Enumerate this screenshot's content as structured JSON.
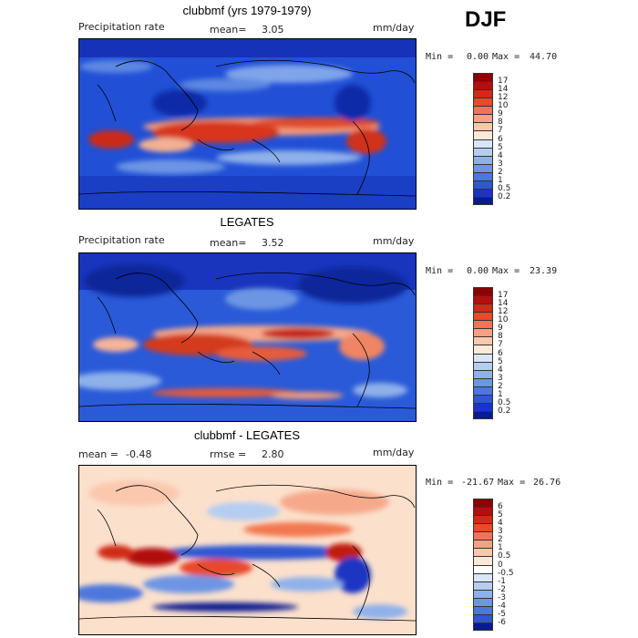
{
  "season": "DJF",
  "panels": [
    {
      "title": "clubbmf (yrs 1979-1979)",
      "left_label": "Precipitation rate",
      "stat1_label": "mean=",
      "stat1_value": "3.05",
      "stat2_label": "",
      "stat2_value": "",
      "units": "mm/day",
      "min_label": "Min =",
      "min_value": "0.00",
      "max_label": "Max =",
      "max_value": "44.70",
      "colorbar_levels": [
        "17",
        "14",
        "12",
        "10",
        "9",
        "8",
        "7",
        "6",
        "5",
        "4",
        "3",
        "2",
        "1",
        "0.5",
        "0.2"
      ],
      "colorbar_colors": [
        "#8b0000",
        "#b2100c",
        "#d02a18",
        "#e84a2a",
        "#f27458",
        "#f7a083",
        "#fbc8ae",
        "#fde9d8",
        "#d8e6f7",
        "#b5cdf1",
        "#8fb1ea",
        "#6d95e4",
        "#4d77dc",
        "#2f56d3",
        "#1a35c2",
        "#0a1a90"
      ]
    },
    {
      "title": "LEGATES",
      "left_label": "Precipitation rate",
      "stat1_label": "mean=",
      "stat1_value": "3.52",
      "stat2_label": "",
      "stat2_value": "",
      "units": "mm/day",
      "min_label": "Min =",
      "min_value": "0.00",
      "max_label": "Max =",
      "max_value": "23.39",
      "colorbar_levels": [
        "17",
        "14",
        "12",
        "10",
        "9",
        "8",
        "7",
        "6",
        "5",
        "4",
        "3",
        "2",
        "1",
        "0.5",
        "0.2"
      ],
      "colorbar_colors": [
        "#8b0000",
        "#b2100c",
        "#d02a18",
        "#e84a2a",
        "#f27458",
        "#f7a083",
        "#fbc8ae",
        "#fde9d8",
        "#d8e6f7",
        "#b5cdf1",
        "#8fb1ea",
        "#6d95e4",
        "#4d77dc",
        "#2f56d3",
        "#1a35c2",
        "#0a1a90"
      ]
    },
    {
      "title": "clubbmf - LEGATES",
      "left_label": "",
      "stat1_label": "mean =",
      "stat1_value": "-0.48",
      "stat2_label": "rmse =",
      "stat2_value": "2.80",
      "units": "mm/day",
      "min_label": "Min =",
      "min_value": "-21.67",
      "max_label": "Max =",
      "max_value": "26.76",
      "colorbar_levels": [
        "6",
        "5",
        "4",
        "3",
        "2",
        "1",
        "0.5",
        "0",
        "-0.5",
        "-1",
        "-2",
        "-3",
        "-4",
        "-5",
        "-6"
      ],
      "colorbar_colors": [
        "#8b0000",
        "#b2100c",
        "#d02a18",
        "#e84a2a",
        "#f27458",
        "#f7a083",
        "#fbc8ae",
        "#fde9d8",
        "#ffffff",
        "#d8e6f7",
        "#b5cdf1",
        "#8fb1ea",
        "#6d95e4",
        "#4d77dc",
        "#2f56d3",
        "#0a1a90"
      ]
    }
  ]
}
